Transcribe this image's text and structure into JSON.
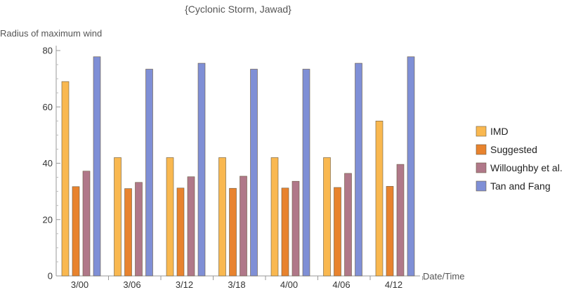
{
  "chart_data": {
    "type": "bar",
    "title": "{Cyclonic Storm, Jawad}",
    "ylabel": "Radius of maximum wind",
    "xlabel": "Date/Time",
    "categories": [
      "3/00",
      "3/06",
      "3/12",
      "3/18",
      "4/00",
      "4/06",
      "4/12"
    ],
    "ylim": [
      0,
      80
    ],
    "yticks": [
      0,
      20,
      40,
      60,
      80
    ],
    "grid": false,
    "legend_position": "right",
    "series": [
      {
        "name": "IMD",
        "color": "#F9B850",
        "values": [
          69,
          42,
          42,
          42,
          42,
          42,
          55
        ]
      },
      {
        "name": "Suggested",
        "color": "#E8832E",
        "values": [
          31.7,
          31,
          31.2,
          31.1,
          31.2,
          31.4,
          31.8
        ]
      },
      {
        "name": "Willoughby et al.",
        "color": "#B07889",
        "values": [
          37.2,
          33.2,
          35.2,
          35.4,
          33.6,
          36.4,
          39.6
        ]
      },
      {
        "name": "Tan and Fang",
        "color": "#7F8FD6",
        "values": [
          77.8,
          73.4,
          75.5,
          73.4,
          73.4,
          75.5,
          77.8
        ]
      }
    ]
  }
}
